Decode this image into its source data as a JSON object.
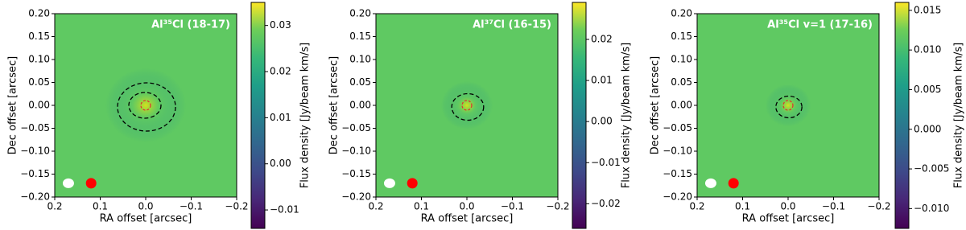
{
  "chart_data": [
    {
      "type": "heatmap",
      "title": "Al³⁵Cl (18-17)",
      "xlabel": "RA offset [arcsec]",
      "ylabel": "Dec offset [arcsec]",
      "xlim": [
        0.2,
        -0.2
      ],
      "xticks": [
        0.2,
        0.1,
        {
          "value": 0,
          "label": "0.0"
        },
        {
          "value": -0.1,
          "label": "−0.1"
        },
        {
          "value": -0.2,
          "label": "−0.2"
        }
      ],
      "ylim": [
        -0.2,
        0.2
      ],
      "yticks": [
        {
          "value": -0.2,
          "label": "−0.20"
        },
        {
          "value": -0.15,
          "label": "−0.15"
        },
        {
          "value": -0.1,
          "label": "−0.10"
        },
        {
          "value": -0.05,
          "label": "−0.05"
        },
        {
          "value": 0,
          "label": "0.00"
        },
        {
          "value": 0.05,
          "label": "0.05"
        },
        {
          "value": 0.1,
          "label": "0.10"
        },
        {
          "value": 0.15,
          "label": "0.15"
        },
        {
          "value": 0.2,
          "label": "0.20"
        }
      ],
      "colormap": "viridis",
      "colorbar_label": "Flux density [Jy/beam km/s]",
      "clim": [
        -0.014,
        0.035
      ],
      "cticks": [
        {
          "value": -0.01,
          "label": "−0.01"
        },
        {
          "value": 0,
          "label": "0.00"
        },
        0.01,
        0.02,
        0.03
      ],
      "markers": [
        {
          "x": 0.17,
          "y": -0.17,
          "color": "#ffffff"
        },
        {
          "x": 0.12,
          "y": -0.17,
          "color": "#ff0000"
        }
      ]
    },
    {
      "type": "heatmap",
      "title": "Al³⁷Cl (16-15)",
      "xlabel": "RA offset [arcsec]",
      "ylabel": "Dec offset [arcsec]",
      "xlim": [
        0.2,
        -0.2
      ],
      "xticks": [
        0.2,
        0.1,
        {
          "value": 0,
          "label": "0.0"
        },
        {
          "value": -0.1,
          "label": "−0.1"
        },
        {
          "value": -0.2,
          "label": "−0.2"
        }
      ],
      "ylim": [
        -0.2,
        0.2
      ],
      "yticks": [
        {
          "value": -0.2,
          "label": "−0.20"
        },
        {
          "value": -0.15,
          "label": "−0.15"
        },
        {
          "value": -0.1,
          "label": "−0.10"
        },
        {
          "value": -0.05,
          "label": "−0.05"
        },
        {
          "value": 0,
          "label": "0.00"
        },
        {
          "value": 0.05,
          "label": "0.05"
        },
        {
          "value": 0.1,
          "label": "0.10"
        },
        {
          "value": 0.15,
          "label": "0.15"
        },
        {
          "value": 0.2,
          "label": "0.20"
        }
      ],
      "colormap": "viridis",
      "colorbar_label": "Flux density [Jy/beam km/s]",
      "clim": [
        -0.026,
        0.029
      ],
      "cticks": [
        {
          "value": -0.02,
          "label": "−0.02"
        },
        {
          "value": -0.01,
          "label": "−0.01"
        },
        {
          "value": 0,
          "label": "0.00"
        },
        0.01,
        0.02
      ],
      "markers": [
        {
          "x": 0.17,
          "y": -0.17,
          "color": "#ffffff"
        },
        {
          "x": 0.12,
          "y": -0.17,
          "color": "#ff0000"
        }
      ]
    },
    {
      "type": "heatmap",
      "title": "Al³⁵Cl v=1 (17-16)",
      "xlabel": "RA offset [arcsec]",
      "ylabel": "Dec offset [arcsec]",
      "xlim": [
        0.2,
        -0.2
      ],
      "xticks": [
        0.2,
        0.1,
        {
          "value": 0,
          "label": "0.0"
        },
        {
          "value": -0.1,
          "label": "−0.1"
        },
        {
          "value": -0.2,
          "label": "−0.2"
        }
      ],
      "ylim": [
        -0.2,
        0.2
      ],
      "yticks": [
        {
          "value": -0.2,
          "label": "−0.20"
        },
        {
          "value": -0.15,
          "label": "−0.15"
        },
        {
          "value": -0.1,
          "label": "−0.10"
        },
        {
          "value": -0.05,
          "label": "−0.05"
        },
        {
          "value": 0,
          "label": "0.00"
        },
        {
          "value": 0.05,
          "label": "0.05"
        },
        {
          "value": 0.1,
          "label": "0.10"
        },
        {
          "value": 0.15,
          "label": "0.15"
        },
        {
          "value": 0.2,
          "label": "0.20"
        }
      ],
      "colormap": "viridis",
      "colorbar_label": "Flux density [Jy/beam km/s]",
      "clim": [
        -0.0125,
        0.016
      ],
      "cticks": [
        {
          "value": -0.01,
          "label": "−0.010"
        },
        {
          "value": -0.005,
          "label": "−0.005"
        },
        {
          "value": 0,
          "label": "0.000"
        },
        {
          "value": 0.005,
          "label": "0.005"
        },
        {
          "value": 0.01,
          "label": "0.010"
        },
        {
          "value": 0.015,
          "label": "0.015"
        }
      ],
      "markers": [
        {
          "x": 0.17,
          "y": -0.17,
          "color": "#ffffff"
        },
        {
          "x": 0.12,
          "y": -0.17,
          "color": "#ff0000"
        }
      ]
    }
  ]
}
